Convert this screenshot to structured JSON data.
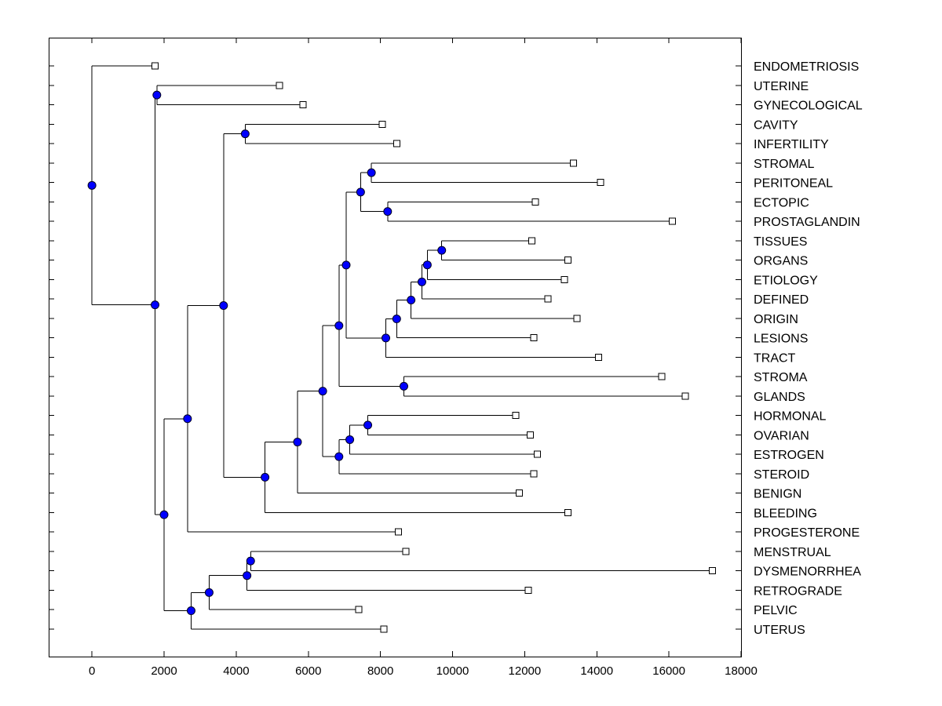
{
  "chart_data": {
    "type": "dendrogram",
    "orientation": "horizontal",
    "title": "",
    "xlabel": "",
    "ylabel": "",
    "xlim": [
      -1200,
      18000
    ],
    "x_ticks": [
      0,
      2000,
      4000,
      6000,
      8000,
      10000,
      12000,
      14000,
      16000,
      18000
    ],
    "x_tick_labels": [
      "0",
      "2000",
      "4000",
      "6000",
      "8000",
      "10000",
      "12000",
      "14000",
      "16000",
      "18000"
    ],
    "grid": false,
    "colors": {
      "internal_node": "#0000ff",
      "leaf_node": "#ffffff",
      "line": "#000000"
    },
    "leaves": [
      {
        "label": "ENDOMETRIOSIS",
        "x": 1750
      },
      {
        "label": "UTERINE",
        "x": 5200
      },
      {
        "label": "GYNECOLOGICAL",
        "x": 5850
      },
      {
        "label": "CAVITY",
        "x": 8050
      },
      {
        "label": "INFERTILITY",
        "x": 8450
      },
      {
        "label": "STROMAL",
        "x": 13350
      },
      {
        "label": "PERITONEAL",
        "x": 14100
      },
      {
        "label": "ECTOPIC",
        "x": 12300
      },
      {
        "label": "PROSTAGLANDIN",
        "x": 16100
      },
      {
        "label": "TISSUES",
        "x": 12200
      },
      {
        "label": "ORGANS",
        "x": 13200
      },
      {
        "label": "ETIOLOGY",
        "x": 13100
      },
      {
        "label": "DEFINED",
        "x": 12650
      },
      {
        "label": "ORIGIN",
        "x": 13450
      },
      {
        "label": "LESIONS",
        "x": 12250
      },
      {
        "label": "TRACT",
        "x": 14050
      },
      {
        "label": "STROMA",
        "x": 15800
      },
      {
        "label": "GLANDS",
        "x": 16450
      },
      {
        "label": "HORMONAL",
        "x": 11750
      },
      {
        "label": "OVARIAN",
        "x": 12150
      },
      {
        "label": "ESTROGEN",
        "x": 12350
      },
      {
        "label": "STEROID",
        "x": 12250
      },
      {
        "label": "BENIGN",
        "x": 11850
      },
      {
        "label": "BLEEDING",
        "x": 13200
      },
      {
        "label": "PROGESTERONE",
        "x": 8500
      },
      {
        "label": "MENSTRUAL",
        "x": 8700
      },
      {
        "label": "DYSMENORRHEA",
        "x": 17200
      },
      {
        "label": "RETROGRADE",
        "x": 12100
      },
      {
        "label": "PELVIC",
        "x": 7400
      },
      {
        "label": "UTERUS",
        "x": 8100
      }
    ],
    "merges": [
      {
        "id": "n01",
        "x": 1800,
        "children": [
          "UTERINE",
          "GYNECOLOGICAL"
        ]
      },
      {
        "id": "n02",
        "x": 4250,
        "children": [
          "CAVITY",
          "INFERTILITY"
        ]
      },
      {
        "id": "n03",
        "x": 7750,
        "children": [
          "STROMAL",
          "PERITONEAL"
        ]
      },
      {
        "id": "n04",
        "x": 8200,
        "children": [
          "ECTOPIC",
          "PROSTAGLANDIN"
        ]
      },
      {
        "id": "n05",
        "x": 7450,
        "children": [
          "n03",
          "n04"
        ]
      },
      {
        "id": "n06",
        "x": 9700,
        "children": [
          "TISSUES",
          "ORGANS"
        ]
      },
      {
        "id": "n07",
        "x": 9300,
        "children": [
          "n06",
          "ETIOLOGY"
        ]
      },
      {
        "id": "n08",
        "x": 9150,
        "children": [
          "n07",
          "DEFINED"
        ]
      },
      {
        "id": "n09",
        "x": 8850,
        "children": [
          "n08",
          "ORIGIN"
        ]
      },
      {
        "id": "n10",
        "x": 8450,
        "children": [
          "n09",
          "LESIONS"
        ]
      },
      {
        "id": "n11",
        "x": 8150,
        "children": [
          "n10",
          "TRACT"
        ]
      },
      {
        "id": "n12",
        "x": 7050,
        "children": [
          "n05",
          "n11"
        ]
      },
      {
        "id": "n13",
        "x": 8650,
        "children": [
          "STROMA",
          "GLANDS"
        ]
      },
      {
        "id": "n14",
        "x": 6850,
        "children": [
          "n12",
          "n13"
        ]
      },
      {
        "id": "n15",
        "x": 7650,
        "children": [
          "HORMONAL",
          "OVARIAN"
        ]
      },
      {
        "id": "n16",
        "x": 7150,
        "children": [
          "n15",
          "ESTROGEN"
        ]
      },
      {
        "id": "n17",
        "x": 6850,
        "children": [
          "n16",
          "STEROID"
        ]
      },
      {
        "id": "n18",
        "x": 6400,
        "children": [
          "n14",
          "n17"
        ]
      },
      {
        "id": "n19",
        "x": 5700,
        "children": [
          "n18",
          "BENIGN"
        ]
      },
      {
        "id": "n20",
        "x": 4800,
        "children": [
          "n19",
          "BLEEDING"
        ]
      },
      {
        "id": "n21",
        "x": 3650,
        "children": [
          "n02",
          "n20"
        ]
      },
      {
        "id": "n22",
        "x": 2650,
        "children": [
          "n21",
          "PROGESTERONE"
        ]
      },
      {
        "id": "n23",
        "x": 4400,
        "children": [
          "MENSTRUAL",
          "DYSMENORRHEA"
        ]
      },
      {
        "id": "n24",
        "x": 4300,
        "children": [
          "n23",
          "RETROGRADE"
        ]
      },
      {
        "id": "n25",
        "x": 3250,
        "children": [
          "n24",
          "PELVIC"
        ]
      },
      {
        "id": "n26",
        "x": 2750,
        "children": [
          "n25",
          "UTERUS"
        ]
      },
      {
        "id": "n27",
        "x": 2000,
        "children": [
          "n22",
          "n26"
        ]
      },
      {
        "id": "n28",
        "x": 1750,
        "children": [
          "n01",
          "n27"
        ]
      },
      {
        "id": "n29",
        "x": 0,
        "children": [
          "ENDOMETRIOSIS",
          "n28"
        ]
      }
    ]
  }
}
